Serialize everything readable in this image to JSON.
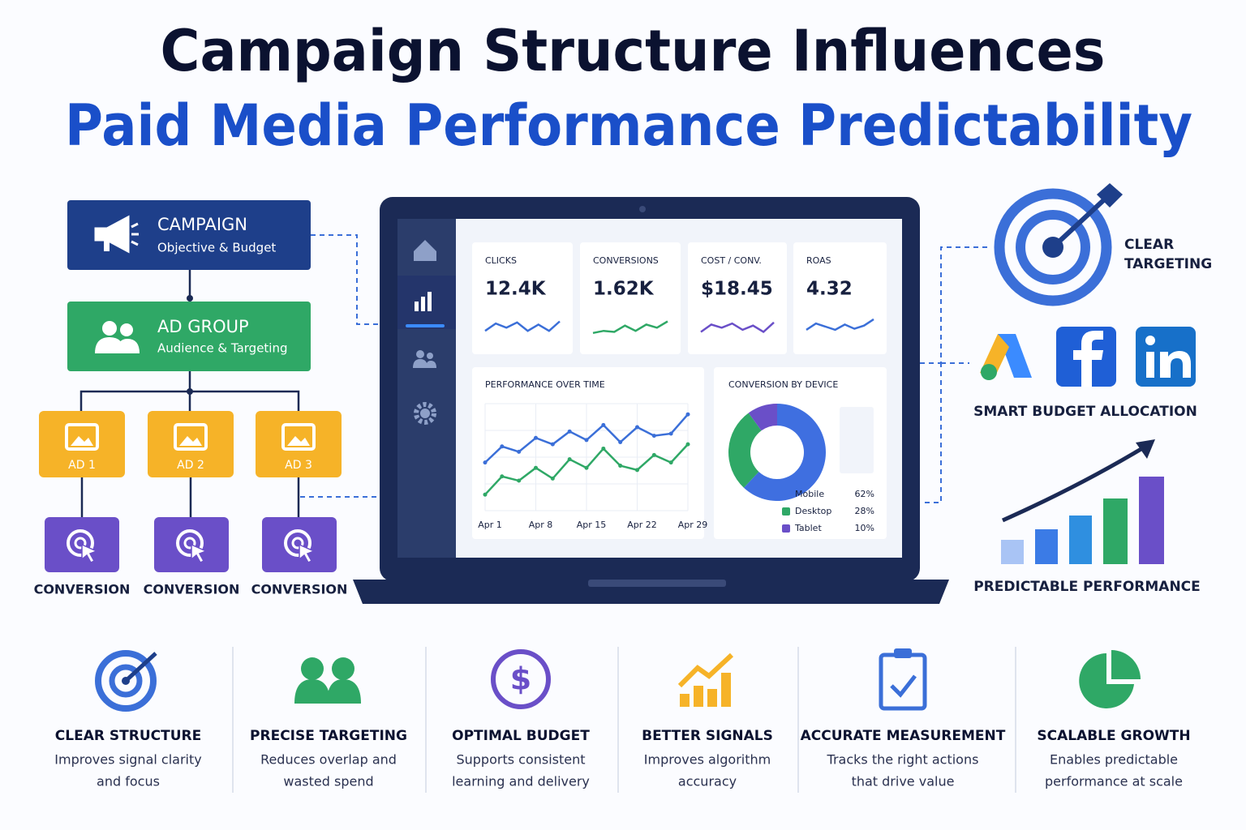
{
  "header": {
    "title_line1": "Campaign Structure Influences",
    "title_line2": "Paid Media Performance Predictability"
  },
  "hierarchy": {
    "campaign": {
      "title": "CAMPAIGN",
      "subtitle": "Objective & Budget"
    },
    "ad_group": {
      "title": "AD GROUP",
      "subtitle": "Audience & Targeting"
    },
    "ads": [
      "AD 1",
      "AD 2",
      "AD 3"
    ],
    "conversions": [
      "CONVERSION",
      "CONVERSION",
      "CONVERSION"
    ]
  },
  "dashboard": {
    "trend_ylim": [
      0,
      100
    ],
    "kpis": [
      {
        "label": "CLICKS",
        "value": "12.4K",
        "color": "#3b6fd8",
        "trend": [
          30,
          65,
          45,
          70,
          30,
          60,
          30,
          75
        ]
      },
      {
        "label": "CONVERSIONS",
        "value": "1.62K",
        "color": "#2fa866",
        "trend": [
          20,
          30,
          25,
          55,
          30,
          60,
          45,
          75
        ]
      },
      {
        "label": "COST / CONV.",
        "value": "$18.45",
        "color": "#6a4fc8",
        "trend": [
          25,
          60,
          45,
          65,
          35,
          55,
          25,
          70
        ]
      },
      {
        "label": "ROAS",
        "value": "4.32",
        "color": "#3b6fd8",
        "trend": [
          35,
          65,
          50,
          35,
          60,
          40,
          55,
          85
        ]
      }
    ],
    "performance_chart": {
      "type": "line",
      "title": "PERFORMANCE OVER TIME",
      "categories": [
        "Apr 1",
        null,
        null,
        "Apr 8",
        null,
        null,
        "Apr 15",
        null,
        null,
        "Apr 22",
        null,
        null,
        "Apr 29"
      ],
      "series": [
        {
          "color": "#3b6fd8",
          "values": [
            45,
            60,
            55,
            68,
            62,
            74,
            66,
            80,
            64,
            78,
            70,
            72,
            90
          ]
        },
        {
          "color": "#2fa866",
          "values": [
            15,
            32,
            28,
            40,
            30,
            48,
            40,
            58,
            42,
            38,
            52,
            45,
            62
          ]
        }
      ],
      "ylim": [
        0,
        100
      ],
      "grid": true
    },
    "device_chart": {
      "type": "pie",
      "title": "CONVERSION BY DEVICE",
      "categories": [
        "Mobile",
        "Desktop",
        "Tablet"
      ],
      "values": [
        62,
        28,
        10
      ],
      "value_labels": [
        "62%",
        "28%",
        "10%"
      ],
      "colors": [
        "#3f6fe0",
        "#2fa866",
        "#6a4fc8"
      ]
    }
  },
  "right_panel": {
    "targeting": [
      "CLEAR",
      "TARGETING"
    ],
    "budget": "SMART BUDGET ALLOCATION",
    "performance": "PREDICTABLE PERFORMANCE"
  },
  "benefits": [
    {
      "title": "CLEAR STRUCTURE",
      "lines": [
        "Improves signal clarity",
        "and focus"
      ]
    },
    {
      "title": "PRECISE TARGETING",
      "lines": [
        "Reduces overlap and",
        "wasted spend"
      ]
    },
    {
      "title": "OPTIMAL BUDGET",
      "lines": [
        "Supports consistent",
        "learning and delivery"
      ]
    },
    {
      "title": "BETTER SIGNALS",
      "lines": [
        "Improves algorithm",
        "accuracy"
      ]
    },
    {
      "title": "ACCURATE MEASUREMENT",
      "lines": [
        "Tracks the right actions",
        "that drive value"
      ]
    },
    {
      "title": "SCALABLE GROWTH",
      "lines": [
        "Enables predictable",
        "performance at scale"
      ]
    }
  ]
}
